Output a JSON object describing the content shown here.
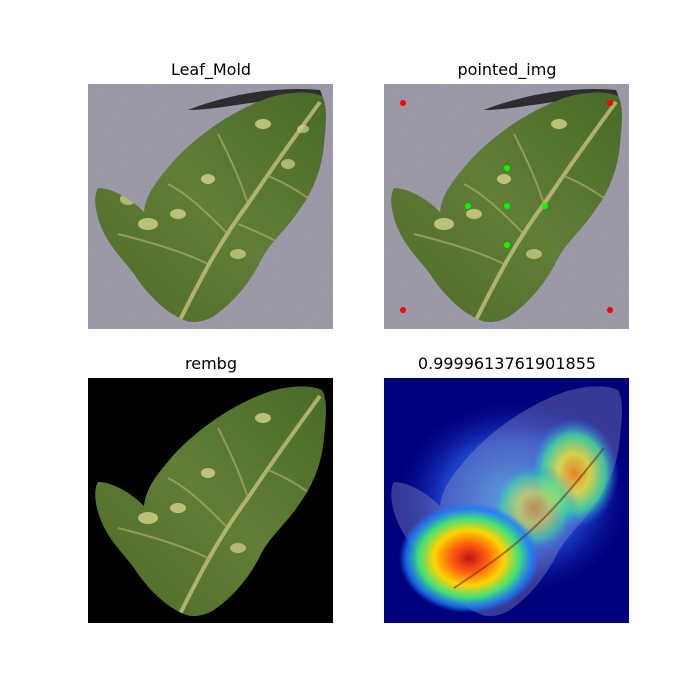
{
  "panels": [
    {
      "title": "Leaf_Mold",
      "kind": "original"
    },
    {
      "title": "pointed_img",
      "kind": "pointed"
    },
    {
      "title": "rembg",
      "kind": "background-removed"
    },
    {
      "title": "0.9999613761901855",
      "kind": "heatmap"
    }
  ],
  "colors": {
    "background_gray": "#8f8c9c",
    "leaf_dark": "#3f5a25",
    "leaf_mid": "#5f7f35",
    "leaf_spot": "#c7c77a",
    "removed_bg": "#000000",
    "heatmap_base": "#00007a",
    "point_red": "#ff0000",
    "point_green": "#00ff00"
  },
  "points": {
    "red_count": 4,
    "green_count": 5
  }
}
